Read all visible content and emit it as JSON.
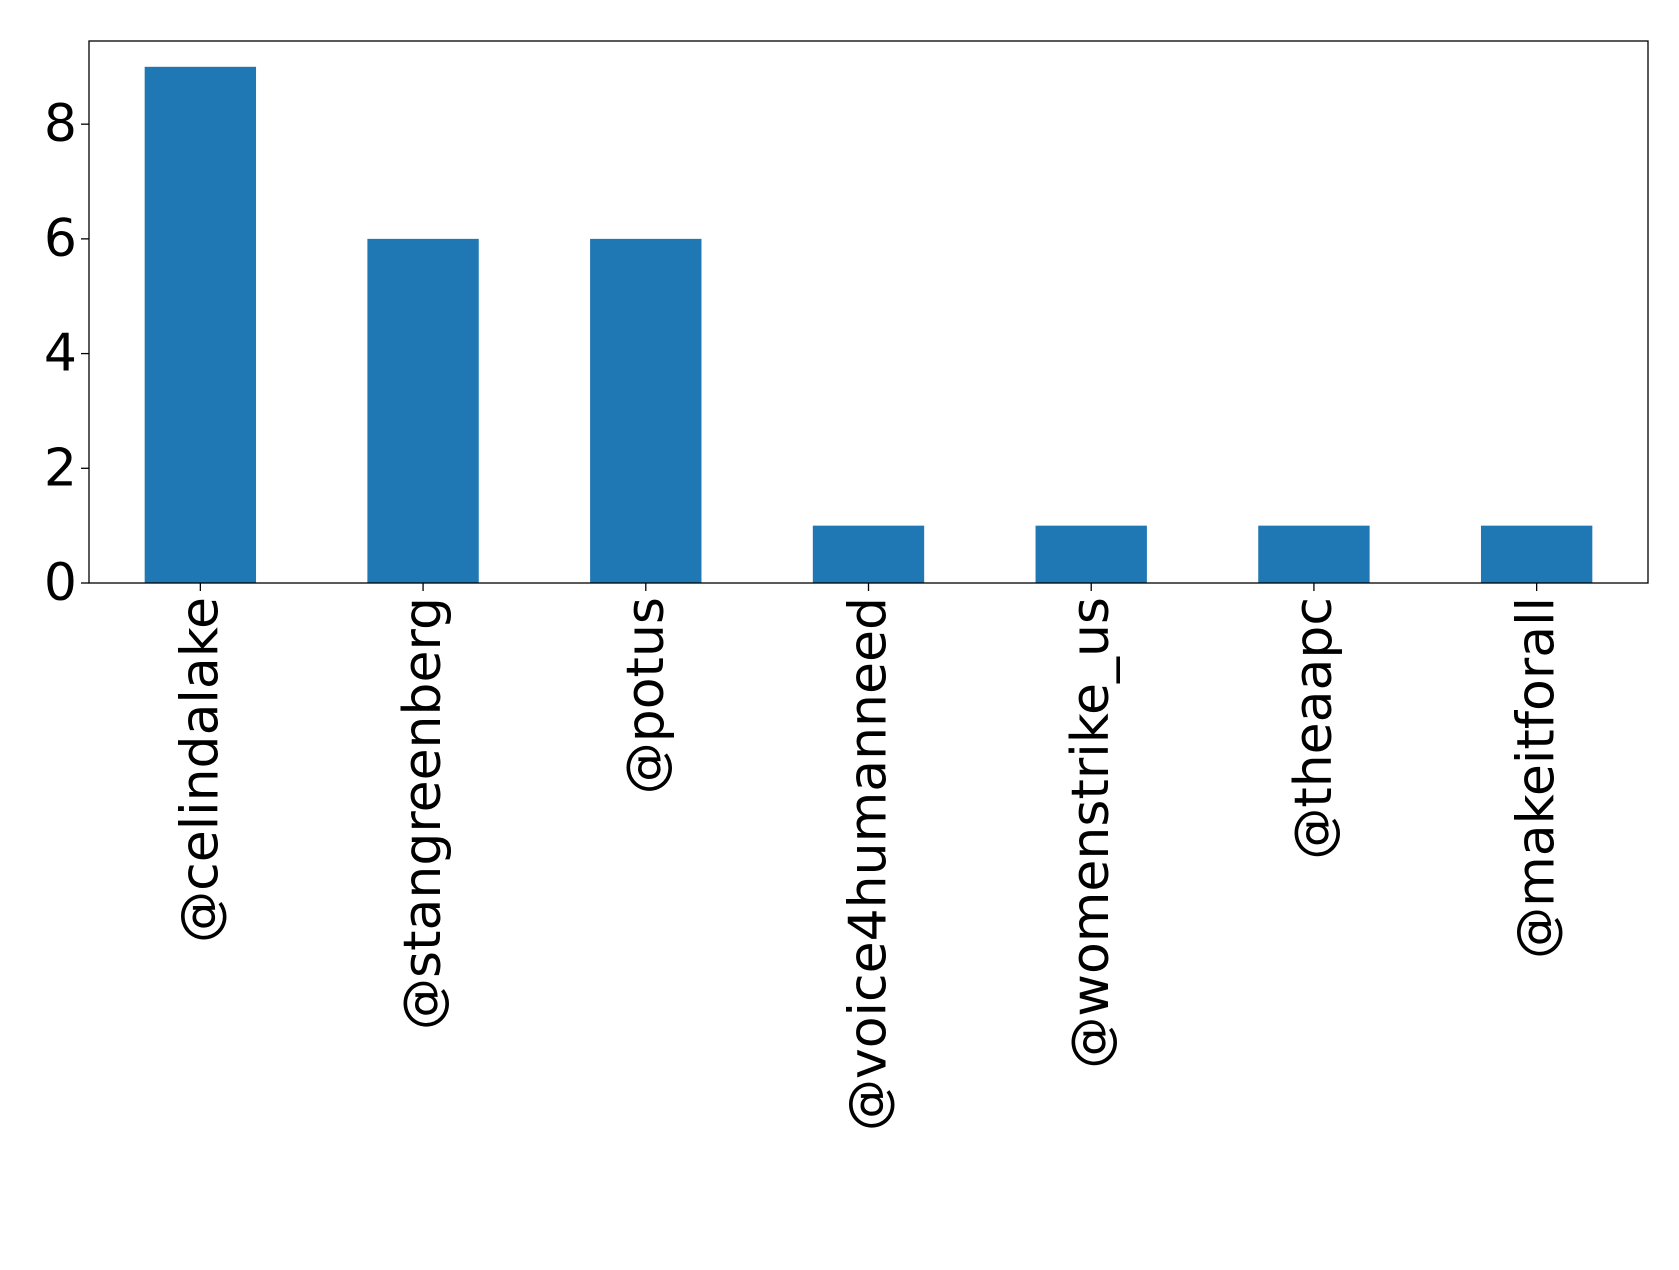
{
  "chart_data": {
    "type": "bar",
    "title": "",
    "xlabel": "",
    "ylabel": "",
    "categories": [
      "@celindalake",
      "@stangreenberg",
      "@potus",
      "@voice4humanneed",
      "@womenstrike_us",
      "@theaapc",
      "@makeitforall"
    ],
    "values": [
      9,
      6,
      6,
      1,
      1,
      1,
      1
    ],
    "ylim": [
      0,
      9.45
    ],
    "yticks": [
      0,
      2,
      4,
      6,
      8
    ],
    "grid": false,
    "legend": "none",
    "bar_color": "#1f77b4",
    "xtick_rotation": "vertical"
  }
}
